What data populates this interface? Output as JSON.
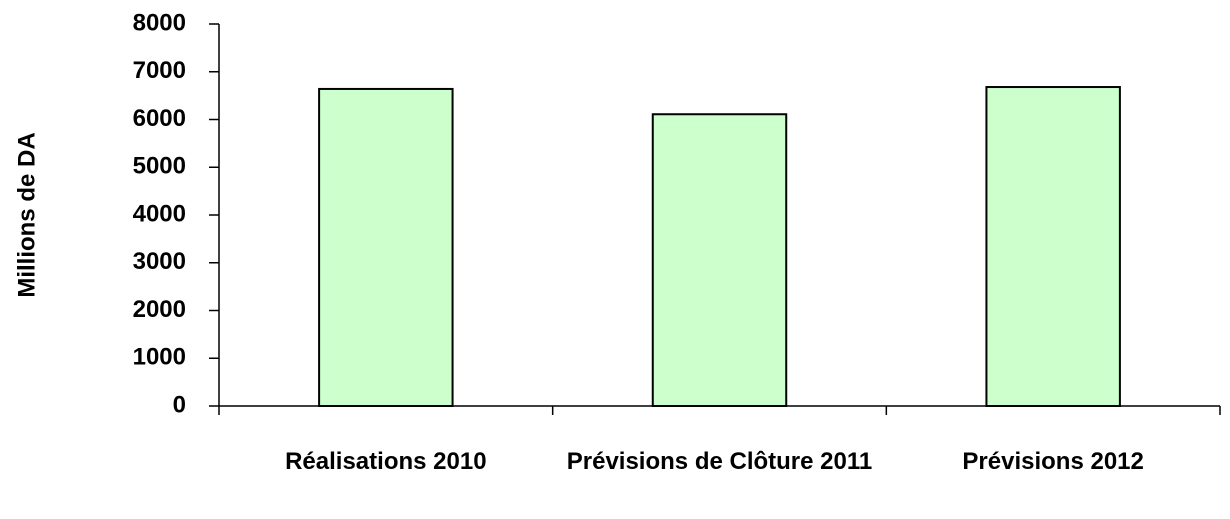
{
  "chart_data": {
    "type": "bar",
    "ylabel": "Millions de DA",
    "categories": [
      "Réalisations 2010",
      "Prévisions de Clôture 2011",
      "Prévisions 2012"
    ],
    "values": [
      6640,
      6110,
      6680
    ],
    "color": "#ccffcc",
    "ylim": [
      0,
      8000
    ],
    "yticks": [
      0,
      1000,
      2000,
      3000,
      4000,
      5000,
      6000,
      7000,
      8000
    ],
    "grid": false
  }
}
